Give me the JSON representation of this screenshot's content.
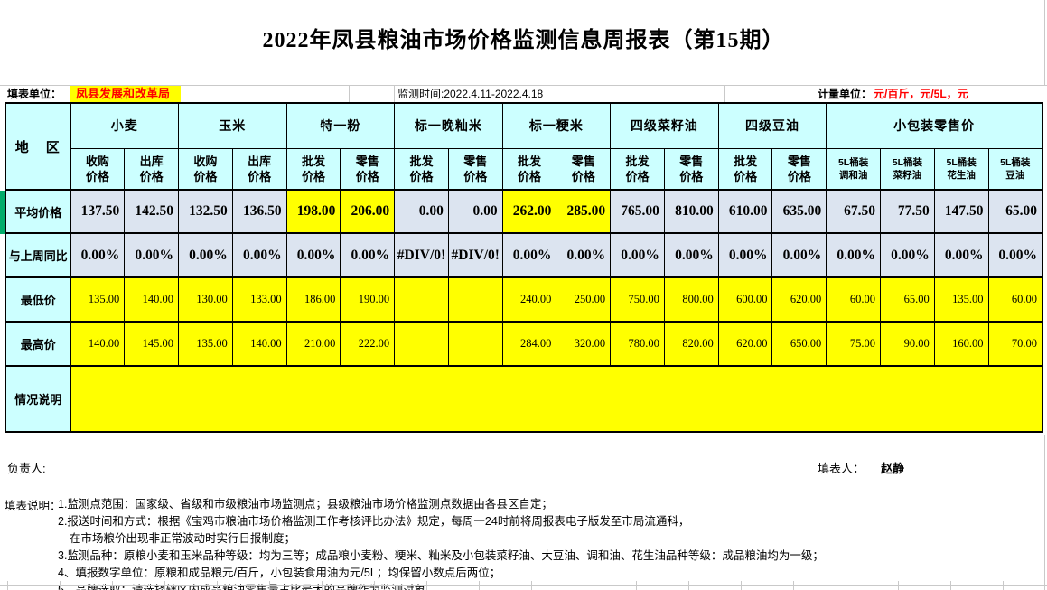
{
  "title": "2022年凤县粮油市场价格监测信息周报表（第15期）",
  "info": {
    "unit_label": "填表单位：",
    "unit_value": "凤县发展和改革局",
    "monitor_time": "监测时间:2022.4.11-2022.4.18",
    "measure_label": "计量单位：",
    "measure_value": "元/百斤，元/5L，元"
  },
  "table": {
    "region_header": "地　区",
    "groups": [
      {
        "label": "小麦",
        "span": 2
      },
      {
        "label": "玉米",
        "span": 2
      },
      {
        "label": "特一粉",
        "span": 2
      },
      {
        "label": "标一晚籼米",
        "span": 2
      },
      {
        "label": "标一粳米",
        "span": 2
      },
      {
        "label": "四级菜籽油",
        "span": 2
      },
      {
        "label": "四级豆油",
        "span": 2
      },
      {
        "label": "小包装零售价",
        "span": 4
      }
    ],
    "sub_headers": [
      "收购\n价格",
      "出库\n价格",
      "收购\n价格",
      "出库\n价格",
      "批发\n价格",
      "零售\n价格",
      "批发\n价格",
      "零售\n价格",
      "批发\n价格",
      "零售\n价格",
      "批发\n价格",
      "零售\n价格",
      "批发\n价格",
      "零售\n价格",
      "5L桶装\n调和油",
      "5L桶装\n菜籽油",
      "5L桶装\n花生油",
      "5L桶装\n豆油"
    ],
    "rows": [
      {
        "label": "平均价格",
        "bg": "blue",
        "yellow_cols": [
          4,
          5,
          8,
          9
        ],
        "values": [
          "137.50",
          "142.50",
          "132.50",
          "136.50",
          "198.00",
          "206.00",
          "0.00",
          "0.00",
          "262.00",
          "285.00",
          "765.00",
          "810.00",
          "610.00",
          "635.00",
          "67.50",
          "77.50",
          "147.50",
          "65.00"
        ]
      },
      {
        "label": "与上周同比",
        "bg": "blue",
        "yellow_cols": [],
        "values": [
          "0.00%",
          "0.00%",
          "0.00%",
          "0.00%",
          "0.00%",
          "0.00%",
          "#DIV/0!",
          "#DIV/0!",
          "0.00%",
          "0.00%",
          "0.00%",
          "0.00%",
          "0.00%",
          "0.00%",
          "0.00%",
          "0.00%",
          "0.00%",
          "0.00%"
        ]
      },
      {
        "label": "最低价",
        "bg": "yellow",
        "yellow_cols": [],
        "values": [
          "135.00",
          "140.00",
          "130.00",
          "133.00",
          "186.00",
          "190.00",
          "",
          "",
          "240.00",
          "250.00",
          "750.00",
          "800.00",
          "600.00",
          "620.00",
          "60.00",
          "65.00",
          "135.00",
          "60.00"
        ]
      },
      {
        "label": "最高价",
        "bg": "yellow",
        "yellow_cols": [],
        "values": [
          "140.00",
          "145.00",
          "135.00",
          "140.00",
          "210.00",
          "222.00",
          "",
          "",
          "284.00",
          "320.00",
          "780.00",
          "820.00",
          "620.00",
          "650.00",
          "75.00",
          "90.00",
          "160.00",
          "70.00"
        ]
      }
    ],
    "note_row": {
      "label": "情况说明",
      "value": ""
    }
  },
  "footer": {
    "responsible_label": "负责人:",
    "filler_label": "填表人：",
    "filler_name": "赵静"
  },
  "notes": {
    "label": "填表说明：",
    "lines": [
      {
        "text": "1.监测点范围：国家级、省级和市级粮油市场监测点；县级粮油市场价格监测点数据由各县区自定；",
        "indent": false
      },
      {
        "text": "2.报送时间和方式：根据《宝鸡市粮油市场价格监测工作考核评比办法》规定，每周一24时前将周报表电子版发至市局流通科，",
        "indent": false
      },
      {
        "text": "在市场粮价出现非正常波动时实行日报制度；",
        "indent": true
      },
      {
        "text": "3.监测品种：原粮小麦和玉米品种等级：均为三等；成品粮小麦粉、粳米、籼米及小包装菜籽油、大豆油、调和油、花生油品种等级：成品粮油均为一级；",
        "indent": false
      },
      {
        "text": "4、填报数字单位：原粮和成品粮元/百斤，小包装食用油为元/5L；均保留小数点后两位；",
        "indent": false
      },
      {
        "text": "5、品牌选取：请选择辖区内成品粮油零售量占比最大的品牌作为监测对象。",
        "indent": false
      }
    ]
  },
  "colors": {
    "header_bg": "#CCFFFF",
    "data_bg": "#DCE4F0",
    "highlight": "#FFFF00",
    "accent_red": "#FF0000",
    "row_indicator_green": "#00AC69",
    "grid_gray": "#C9C9C9"
  }
}
